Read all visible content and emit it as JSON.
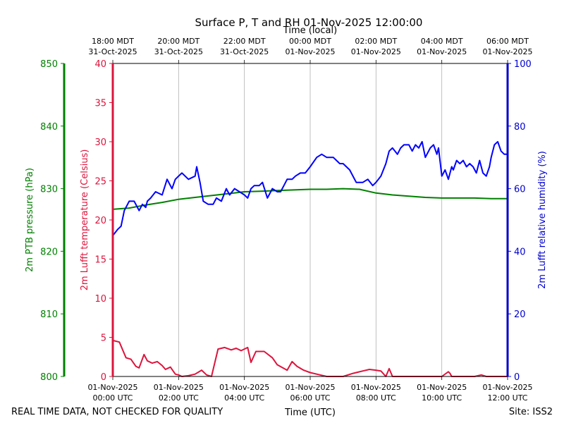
{
  "chart_data": {
    "type": "line",
    "title": "Surface P, T and RH 01-Nov-2025 12:00:00",
    "xlabel_top": "Time (local)",
    "xlabel_bottom": "Time (UTC)",
    "left_outer_axis": {
      "label": "2m PTB pressure (hPa)",
      "ylim": [
        800,
        850
      ],
      "ticks": [
        "800",
        "810",
        "820",
        "830",
        "840",
        "850"
      ],
      "color": "#008000"
    },
    "left_inner_axis": {
      "label": "2m Lufft temperature (Celsius)",
      "ylim": [
        0,
        40
      ],
      "ticks": [
        "0",
        "5",
        "10",
        "15",
        "20",
        "25",
        "30",
        "35",
        "40"
      ],
      "color": "#dc143c"
    },
    "right_axis": {
      "label": "2m Lufft relative humidity (%)",
      "ylim": [
        0,
        100
      ],
      "ticks": [
        "0",
        "20",
        "40",
        "60",
        "80",
        "100"
      ],
      "color": "#0000cd"
    },
    "x_range_hours_utc": [
      0,
      12
    ],
    "x_ticks_bottom": [
      {
        "line1": "01-Nov-2025",
        "line2": "00:00 UTC"
      },
      {
        "line1": "01-Nov-2025",
        "line2": "02:00 UTC"
      },
      {
        "line1": "01-Nov-2025",
        "line2": "04:00 UTC"
      },
      {
        "line1": "01-Nov-2025",
        "line2": "06:00 UTC"
      },
      {
        "line1": "01-Nov-2025",
        "line2": "08:00 UTC"
      },
      {
        "line1": "01-Nov-2025",
        "line2": "10:00 UTC"
      },
      {
        "line1": "01-Nov-2025",
        "line2": "12:00 UTC"
      }
    ],
    "x_ticks_top": [
      {
        "line1": "18:00 MDT",
        "line2": "31-Oct-2025"
      },
      {
        "line1": "20:00 MDT",
        "line2": "31-Oct-2025"
      },
      {
        "line1": "22:00 MDT",
        "line2": "31-Oct-2025"
      },
      {
        "line1": "00:00 MDT",
        "line2": "01-Nov-2025"
      },
      {
        "line1": "02:00 MDT",
        "line2": "01-Nov-2025"
      },
      {
        "line1": "04:00 MDT",
        "line2": "01-Nov-2025"
      },
      {
        "line1": "06:00 MDT",
        "line2": "01-Nov-2025"
      }
    ],
    "grid": "vertical lines at x ticks",
    "series": [
      {
        "name": "2m PTB pressure (hPa)",
        "axis": "left_outer",
        "color": "#008000",
        "x": [
          0,
          0.5,
          1,
          1.5,
          2,
          2.5,
          3,
          3.5,
          4,
          4.5,
          5,
          5.5,
          6,
          6.5,
          7,
          7.5,
          8,
          8.5,
          9,
          9.5,
          10,
          10.5,
          11,
          11.5,
          12
        ],
        "y": [
          826.7,
          826.9,
          827.4,
          827.8,
          828.3,
          828.6,
          828.9,
          829.2,
          829.5,
          829.6,
          829.7,
          829.8,
          829.9,
          829.9,
          830.0,
          829.9,
          829.3,
          829.0,
          828.8,
          828.6,
          828.5,
          828.5,
          828.5,
          828.4,
          828.4
        ]
      },
      {
        "name": "2m Lufft temperature (Celsius)",
        "axis": "left_inner",
        "color": "#dc143c",
        "x": [
          0,
          0.2,
          0.4,
          0.55,
          0.7,
          0.8,
          0.95,
          1.05,
          1.2,
          1.35,
          1.5,
          1.6,
          1.75,
          1.9,
          2.0,
          2.1,
          2.3,
          2.5,
          2.7,
          2.85,
          3.0,
          3.2,
          3.4,
          3.6,
          3.75,
          3.9,
          4.1,
          4.2,
          4.35,
          4.6,
          4.85,
          5.0,
          5.3,
          5.45,
          5.6,
          5.8,
          6.0,
          6.3,
          6.5,
          6.8,
          7.0,
          7.3,
          7.6,
          7.8,
          8.0,
          8.15,
          8.3,
          8.4,
          8.5,
          8.8,
          9.0,
          9.5,
          10.0,
          10.2,
          10.25,
          10.3,
          10.5,
          11.0,
          11.2,
          11.35,
          11.5,
          12.0
        ],
        "y": [
          4.6,
          4.4,
          2.4,
          2.2,
          1.3,
          1.1,
          2.8,
          2.0,
          1.7,
          1.9,
          1.4,
          0.9,
          1.2,
          0.3,
          0.2,
          0.0,
          0.1,
          0.3,
          0.8,
          0.2,
          0.0,
          3.5,
          3.7,
          3.4,
          3.6,
          3.3,
          3.7,
          1.8,
          3.2,
          3.2,
          2.4,
          1.5,
          0.8,
          1.9,
          1.3,
          0.8,
          0.5,
          0.2,
          0.0,
          0.0,
          0.0,
          0.4,
          0.7,
          0.9,
          0.8,
          0.7,
          0.0,
          1.0,
          0.0,
          0.0,
          0.0,
          0.0,
          0.0,
          0.6,
          0.4,
          0.0,
          0.0,
          0.0,
          0.2,
          0.0,
          0.0,
          0.0
        ]
      },
      {
        "name": "2m Lufft relative humidity (%)",
        "axis": "right",
        "color": "#0000ff",
        "x": [
          0,
          0.15,
          0.25,
          0.35,
          0.5,
          0.65,
          0.8,
          0.9,
          1.0,
          1.05,
          1.15,
          1.3,
          1.5,
          1.65,
          1.8,
          1.9,
          2.0,
          2.1,
          2.3,
          2.5,
          2.55,
          2.65,
          2.75,
          2.9,
          3.05,
          3.15,
          3.3,
          3.45,
          3.55,
          3.7,
          3.85,
          4.0,
          4.1,
          4.2,
          4.3,
          4.45,
          4.55,
          4.7,
          4.85,
          5.0,
          5.1,
          5.2,
          5.3,
          5.45,
          5.55,
          5.7,
          5.85,
          6.0,
          6.2,
          6.35,
          6.5,
          6.7,
          6.8,
          6.9,
          7.0,
          7.2,
          7.4,
          7.6,
          7.75,
          7.9,
          8.0,
          8.15,
          8.3,
          8.4,
          8.5,
          8.65,
          8.75,
          8.85,
          9.0,
          9.1,
          9.2,
          9.3,
          9.4,
          9.5,
          9.65,
          9.75,
          9.85,
          9.9,
          10.0,
          10.1,
          10.2,
          10.3,
          10.35,
          10.45,
          10.55,
          10.65,
          10.75,
          10.85,
          10.95,
          11.05,
          11.15,
          11.25,
          11.35,
          11.45,
          11.5,
          11.6,
          11.7,
          11.8,
          11.9,
          12.0
        ],
        "y": [
          45,
          47,
          48,
          53,
          56,
          56,
          53,
          55,
          54,
          56,
          57,
          59,
          58,
          63,
          60,
          63,
          64,
          65,
          63,
          64,
          67,
          62,
          56,
          55,
          55,
          57,
          56,
          60,
          58,
          60,
          59,
          58,
          57,
          60,
          61,
          61,
          62,
          57,
          60,
          59,
          59,
          61,
          63,
          63,
          64,
          65,
          65,
          67,
          70,
          71,
          70,
          70,
          69,
          68,
          68,
          66,
          62,
          62,
          63,
          61,
          62,
          64,
          68,
          72,
          73,
          71,
          73,
          74,
          74,
          72,
          74,
          73,
          75,
          70,
          73,
          74,
          71,
          73,
          64,
          66,
          63,
          67,
          66,
          69,
          68,
          69,
          67,
          68,
          67,
          65,
          69,
          65,
          64,
          67,
          70,
          74,
          75,
          72,
          71,
          71
        ]
      }
    ],
    "footer_left": "REAL TIME DATA, NOT CHECKED FOR QUALITY",
    "footer_right": "Site: ISS2"
  }
}
